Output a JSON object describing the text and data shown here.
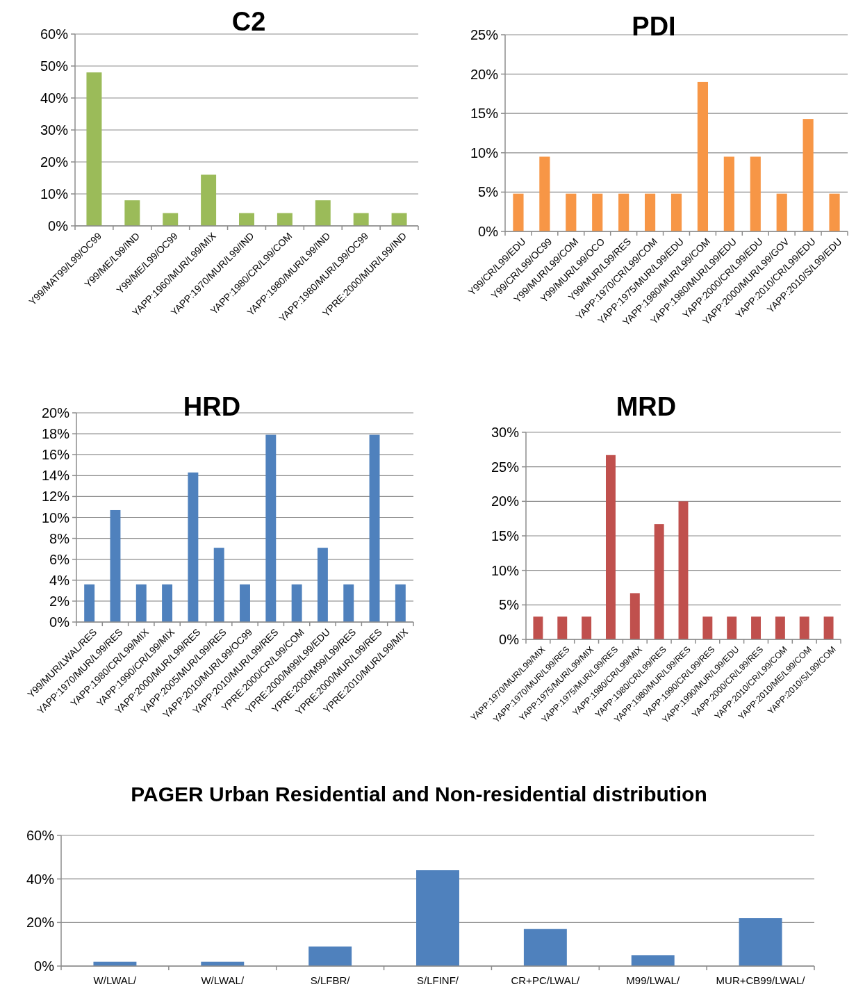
{
  "chart_data": [
    {
      "type": "bar",
      "title": "C2",
      "categories": [
        "Y99/MAT99/L99/OC99",
        "Y99/ME/L99/IND",
        "Y99/ME/L99/OC99",
        "YAPP:1960/MUR/L99/MIX",
        "YAPP:1970/MUR/L99/IND",
        "YAPP:1980/CR/L99/COM",
        "YAPP:1980/MUR/L99/IND",
        "YAPP:1980/MUR/L99/OC99",
        "YPRE:2000/MUR/L99/IND"
      ],
      "values": [
        48,
        8,
        4,
        16,
        4,
        4,
        8,
        4,
        4
      ],
      "color": "#9bbb59",
      "ylim": [
        0,
        60
      ],
      "yticks": [
        {
          "value": 0,
          "label": "0%"
        },
        {
          "value": 10,
          "label": "10%"
        },
        {
          "value": 20,
          "label": "20%"
        },
        {
          "value": 30,
          "label": "30%"
        },
        {
          "value": 40,
          "label": "40%"
        },
        {
          "value": 50,
          "label": "50%"
        },
        {
          "value": 60,
          "label": "60%"
        }
      ],
      "grid": "y"
    },
    {
      "type": "bar",
      "title": "PDI",
      "categories": [
        "Y99/CR/L99/EDU",
        "Y99/CR/L99/OC99",
        "Y99/MUR/L99/COM",
        "Y99/MUR/L99/OCO",
        "Y99/MUR/L99/RES",
        "YAPP:1970/CR/L99/COM",
        "YAPP:1975/MUR/L99/EDU",
        "YAPP:1980/MUR/L99/COM",
        "YAPP:1980/MUR/L99/EDU",
        "YAPP:2000/CR/L99/EDU",
        "YAPP:2000/MUR/L99/GOV",
        "YAPP:2010/CR/L99/EDU",
        "YAPP:2010/S/L99/EDU"
      ],
      "values": [
        4.8,
        9.5,
        4.8,
        4.8,
        4.8,
        4.8,
        4.8,
        19.0,
        9.5,
        9.5,
        4.8,
        14.3,
        4.8
      ],
      "color": "#f79646",
      "ylim": [
        0,
        25
      ],
      "yticks": [
        {
          "value": 0,
          "label": "0%"
        },
        {
          "value": 5,
          "label": "5%"
        },
        {
          "value": 10,
          "label": "10%"
        },
        {
          "value": 15,
          "label": "15%"
        },
        {
          "value": 20,
          "label": "20%"
        },
        {
          "value": 25,
          "label": "25%"
        }
      ],
      "grid": "y"
    },
    {
      "type": "bar",
      "title": "HRD",
      "categories": [
        "Y99/MUR/LWAL/RES",
        "YAPP:1970/MUR/L99/RES",
        "YAPP:1980/CR/L99/MIX",
        "YAPP:1990/CR/L99/MIX",
        "YAPP:2000/MUR/L99/RES",
        "YAPP:2005/MUR/L99/RES",
        "YAPP:2010/MUR/L99/OC99",
        "YAPP:2010/MUR/L99/RES",
        "YPRE:2000/CR/L99/COM",
        "YPRE:2000/M99/L99/EDU",
        "YPRE:2000/M99/L99/RES",
        "YPRE:2000/MUR/L99/RES",
        "YPRE:2010/MUR/L99/MIX"
      ],
      "values": [
        3.6,
        10.7,
        3.6,
        3.6,
        14.3,
        7.1,
        3.6,
        17.9,
        3.6,
        7.1,
        3.6,
        17.9,
        3.6
      ],
      "color": "#4f81bd",
      "ylim": [
        0,
        20
      ],
      "yticks": [
        {
          "value": 0,
          "label": "0%"
        },
        {
          "value": 2,
          "label": "2%"
        },
        {
          "value": 4,
          "label": "4%"
        },
        {
          "value": 6,
          "label": "6%"
        },
        {
          "value": 8,
          "label": "8%"
        },
        {
          "value": 10,
          "label": "10%"
        },
        {
          "value": 12,
          "label": "12%"
        },
        {
          "value": 14,
          "label": "14%"
        },
        {
          "value": 16,
          "label": "16%"
        },
        {
          "value": 18,
          "label": "18%"
        },
        {
          "value": 20,
          "label": "20%"
        }
      ],
      "grid": "y"
    },
    {
      "type": "bar",
      "title": "MRD",
      "categories": [
        "YAPP:1970/MUR/L99/MIX",
        "YAPP:1970/MUR/L99/RES",
        "YAPP:1975/MUR/L99/MIX",
        "YAPP:1975/MUR/L99/RES",
        "YAPP:1980/CR/L99/MIX",
        "YAPP:1980/CR/L99/RES",
        "YAPP:1980/MUR/L99/RES",
        "YAPP:1990/CR/L99/RES",
        "YAPP:1990/MUR/L99/EDU",
        "YAPP:2000/CR/L99/RES",
        "YAPP:2010/CR/L99/COM",
        "YAPP:2010/ME/L99/COM",
        "YAPP:2010/S/L99/COM"
      ],
      "values": [
        3.3,
        3.3,
        3.3,
        26.7,
        6.7,
        16.7,
        20.0,
        3.3,
        3.3,
        3.3,
        3.3,
        3.3,
        3.3
      ],
      "color": "#c0504d",
      "ylim": [
        0,
        30
      ],
      "yticks": [
        {
          "value": 0,
          "label": "0%"
        },
        {
          "value": 5,
          "label": "5%"
        },
        {
          "value": 10,
          "label": "10%"
        },
        {
          "value": 15,
          "label": "15%"
        },
        {
          "value": 20,
          "label": "20%"
        },
        {
          "value": 25,
          "label": "25%"
        },
        {
          "value": 30,
          "label": "30%"
        }
      ],
      "grid": "y"
    },
    {
      "type": "bar",
      "title": "PAGER Urban Residential and Non-residential distribution",
      "categories": [
        "W/LWAL/",
        "W/LWAL/",
        "S/LFBR/",
        "S/LFINF/",
        "CR+PC/LWAL/",
        "M99/LWAL/",
        "MUR+CB99/LWAL/"
      ],
      "values": [
        2,
        2,
        9,
        44,
        17,
        5,
        22
      ],
      "color": "#4f81bd",
      "ylim": [
        0,
        60
      ],
      "yticks": [
        {
          "value": 0,
          "label": "0%"
        },
        {
          "value": 20,
          "label": "20%"
        },
        {
          "value": 40,
          "label": "40%"
        },
        {
          "value": 60,
          "label": "60%"
        }
      ],
      "grid": "y"
    }
  ]
}
